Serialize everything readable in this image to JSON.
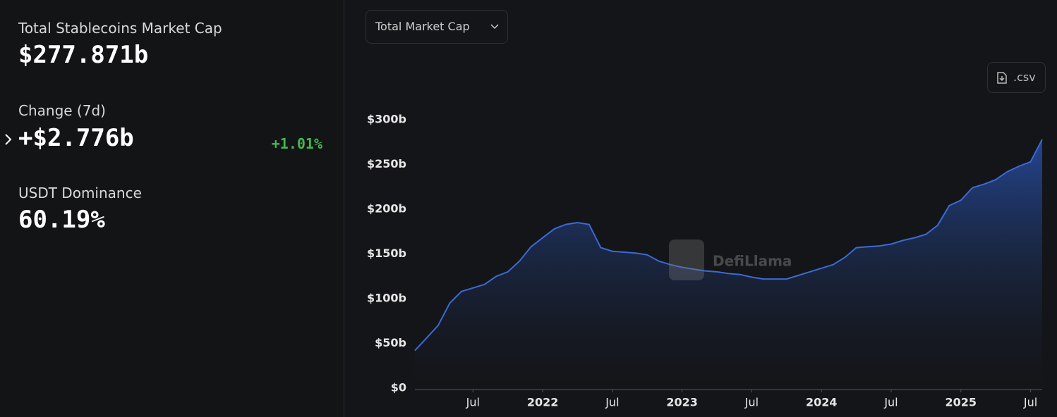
{
  "panel": {
    "title": "Total Stablecoins Market Cap",
    "value": "$277.871b",
    "change_label": "Change (7d)",
    "change_value": "+$2.776b",
    "change_percent": "+1.01%",
    "dominance_label": "USDT Dominance",
    "dominance_value": "60.19%"
  },
  "controls": {
    "dropdown": "Total Market Cap",
    "csv": ".csv"
  },
  "chart_data": {
    "type": "area",
    "color": "#3a6ad6",
    "watermark": "DefiLlama",
    "x": [
      "2021-02",
      "2021-03",
      "2021-04",
      "2021-05",
      "2021-06",
      "2021-07",
      "2021-08",
      "2021-09",
      "2021-10",
      "2021-11",
      "2021-12",
      "2022-01",
      "2022-02",
      "2022-03",
      "2022-04",
      "2022-05",
      "2022-06",
      "2022-07",
      "2022-08",
      "2022-09",
      "2022-10",
      "2022-11",
      "2022-12",
      "2023-01",
      "2023-02",
      "2023-03",
      "2023-04",
      "2023-05",
      "2023-06",
      "2023-07",
      "2023-08",
      "2023-09",
      "2023-10",
      "2023-11",
      "2023-12",
      "2024-01",
      "2024-02",
      "2024-03",
      "2024-04",
      "2024-05",
      "2024-06",
      "2024-07",
      "2024-08",
      "2024-09",
      "2024-10",
      "2024-11",
      "2024-12",
      "2025-01",
      "2025-02",
      "2025-03",
      "2025-04",
      "2025-05",
      "2025-06",
      "2025-07",
      "2025-08"
    ],
    "values": [
      42,
      56,
      70,
      95,
      108,
      112,
      116,
      125,
      130,
      142,
      158,
      168,
      178,
      183,
      185,
      183,
      157,
      153,
      152,
      151,
      149,
      142,
      138,
      135,
      133,
      131,
      130,
      128,
      127,
      124,
      122,
      122,
      122,
      126,
      130,
      134,
      138,
      146,
      157,
      158,
      159,
      161,
      165,
      168,
      172,
      182,
      204,
      210,
      224,
      228,
      233,
      242,
      248,
      253,
      278
    ],
    "xlim": [
      "2021-02",
      "2025-08"
    ],
    "xticks": [
      {
        "value": "2021-07",
        "label": "Jul"
      },
      {
        "value": "2022-01",
        "label": "2022"
      },
      {
        "value": "2022-07",
        "label": "Jul"
      },
      {
        "value": "2023-01",
        "label": "2023"
      },
      {
        "value": "2023-07",
        "label": "Jul"
      },
      {
        "value": "2024-01",
        "label": "2024"
      },
      {
        "value": "2024-07",
        "label": "Jul"
      },
      {
        "value": "2025-01",
        "label": "2025"
      },
      {
        "value": "2025-07",
        "label": "Jul"
      }
    ],
    "ylim": [
      0,
      300
    ],
    "yticks": [
      {
        "value": 0,
        "label": "$0"
      },
      {
        "value": 50,
        "label": "$50b"
      },
      {
        "value": 100,
        "label": "$100b"
      },
      {
        "value": 150,
        "label": "$150b"
      },
      {
        "value": 200,
        "label": "$200b"
      },
      {
        "value": 250,
        "label": "$250b"
      },
      {
        "value": 300,
        "label": "$300b"
      }
    ]
  }
}
